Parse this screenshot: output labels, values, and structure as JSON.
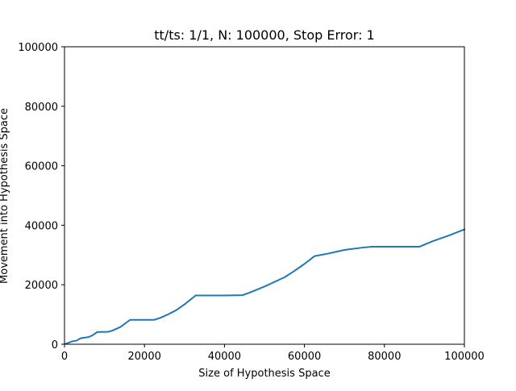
{
  "chart_data": {
    "type": "line",
    "title": "tt/ts: 1/1, N: 100000, Stop Error: 1",
    "xlabel": "Size of Hypothesis Space",
    "ylabel": "Movement into Hypothesis Space",
    "xlim": [
      0,
      100000
    ],
    "ylim": [
      0,
      100000
    ],
    "xticks": [
      0,
      20000,
      40000,
      60000,
      80000,
      100000
    ],
    "yticks": [
      0,
      20000,
      40000,
      60000,
      80000,
      100000
    ],
    "xtick_labels": [
      "0",
      "20000",
      "40000",
      "60000",
      "80000",
      "100000"
    ],
    "ytick_labels": [
      "0",
      "20000",
      "40000",
      "60000",
      "80000",
      "100000"
    ],
    "grid": false,
    "series": [
      {
        "color": "#1f77b4",
        "x": [
          0,
          1000,
          2000,
          3000,
          4000,
          5000,
          6000,
          7000,
          8200,
          11000,
          12000,
          14000,
          16400,
          18000,
          22400,
          24000,
          26000,
          28000,
          30000,
          32800,
          36000,
          40000,
          44500,
          46000,
          50000,
          55000,
          57000,
          60000,
          62500,
          66000,
          70000,
          74000,
          76800,
          80000,
          84000,
          88800,
          92000,
          96000,
          100000
        ],
        "y": [
          0,
          500,
          1000,
          1200,
          2000,
          2200,
          2400,
          3000,
          4100,
          4200,
          4600,
          5800,
          8200,
          8200,
          8200,
          8900,
          10100,
          11500,
          13400,
          16400,
          16400,
          16400,
          16500,
          17200,
          19400,
          22500,
          24200,
          27000,
          29600,
          30500,
          31700,
          32400,
          32800,
          32800,
          32800,
          32800,
          34600,
          36500,
          38600
        ]
      }
    ]
  }
}
